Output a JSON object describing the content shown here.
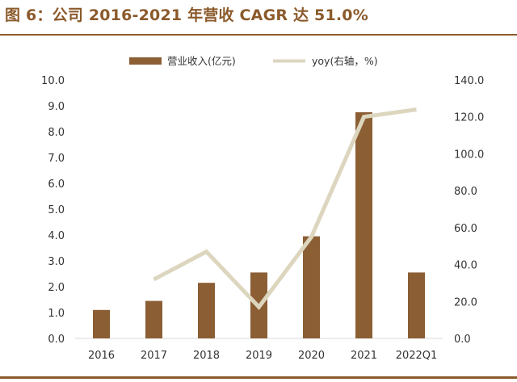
{
  "title": "图 6：公司 2016-2021 年营收 CAGR 达 51.0%",
  "colors": {
    "bar": "#8b5e34",
    "line": "#ddd6bf",
    "accent": "#8b5a2b"
  },
  "chart_data": {
    "type": "bar",
    "categories": [
      "2016",
      "2017",
      "2018",
      "2019",
      "2020",
      "2021",
      "2022Q1"
    ],
    "series": [
      {
        "name": "营业收入(亿元)",
        "type": "bar",
        "axis": "left",
        "values": [
          1.1,
          1.45,
          2.15,
          2.55,
          3.95,
          8.75,
          2.55
        ]
      },
      {
        "name": "yoy(右轴，%)",
        "type": "line",
        "axis": "right",
        "values": [
          null,
          32.0,
          47.0,
          17.0,
          55.0,
          120.0,
          124.0
        ]
      }
    ],
    "y_left": {
      "ylim": [
        0,
        10
      ],
      "ticks": [
        "0.0",
        "1.0",
        "2.0",
        "3.0",
        "4.0",
        "5.0",
        "6.0",
        "7.0",
        "8.0",
        "9.0",
        "10.0"
      ]
    },
    "y_right": {
      "ylim": [
        0,
        140
      ],
      "ticks": [
        "0.0",
        "20.0",
        "40.0",
        "60.0",
        "80.0",
        "100.0",
        "120.0",
        "140.0"
      ]
    },
    "grid": false,
    "legend": "top-center"
  }
}
